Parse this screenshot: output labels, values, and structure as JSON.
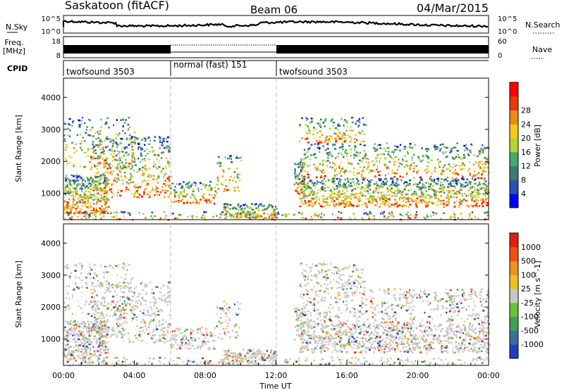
{
  "header": {
    "station": "Saskatoon (fitACF)",
    "beam": "Beam 06",
    "date": "04/Mar/2015"
  },
  "strip": {
    "nsky_label": "N.Sky",
    "nsky_ticks": [
      "10^5",
      "10^0"
    ],
    "nsearch_label": "N.Search",
    "nsearch_ticks": [
      "10^5",
      "10^0"
    ],
    "freq_label": "Freq.",
    "freq_unit": "[MHz]",
    "freq_ticks": [
      "18",
      "8"
    ],
    "nave_label": "Nave",
    "nave_ticks": [
      "60",
      "0"
    ],
    "cpid_label": "CPID",
    "cpid_segments": [
      {
        "label": "twofsound 3503",
        "start_h": 0,
        "end_h": 6
      },
      {
        "label": "normal (fast) 151",
        "start_h": 6,
        "end_h": 12
      },
      {
        "label": "twofsound 3503",
        "start_h": 12,
        "end_h": 24
      }
    ]
  },
  "chart_data": [
    {
      "type": "heatmap",
      "panel": "power",
      "ylabel": "Slant Range [km]",
      "yticks": [
        "1000",
        "2000",
        "3000",
        "4000"
      ],
      "ylim": [
        180,
        4600
      ],
      "xlim_hours": [
        0,
        24
      ],
      "colorbar_label": "Power [dB]",
      "colorbar_ticks": [
        "4",
        "8",
        "12",
        "16",
        "20",
        "24",
        "28"
      ],
      "colors": [
        "#0000ff",
        "#2a4fb4",
        "#3b7a6e",
        "#48a86b",
        "#b6d234",
        "#f6c818",
        "#f08a12",
        "#e43b10",
        "#ff0000"
      ]
    },
    {
      "type": "heatmap",
      "panel": "velocity",
      "ylabel": "Slant Range [km]",
      "yticks": [
        "1000",
        "2000",
        "3000",
        "4000"
      ],
      "ylim": [
        180,
        4600
      ],
      "xlim_hours": [
        0,
        24
      ],
      "xticks": [
        "00:00",
        "04:00",
        "08:00",
        "12:00",
        "16:00",
        "20:00",
        "00:00"
      ],
      "xlabel": "Time UT",
      "colorbar_label": "Velocity [m s^-1]",
      "colorbar_ticks": [
        "1000",
        "500",
        "100",
        "25",
        "-25",
        "-100",
        "-500",
        "-1000"
      ],
      "colors": [
        "#1f3fbf",
        "#3b6e9e",
        "#3f9e5a",
        "#6dc03a",
        "#c8c8c8",
        "#f0c020",
        "#f09020",
        "#f05010",
        "#e02010"
      ]
    }
  ]
}
